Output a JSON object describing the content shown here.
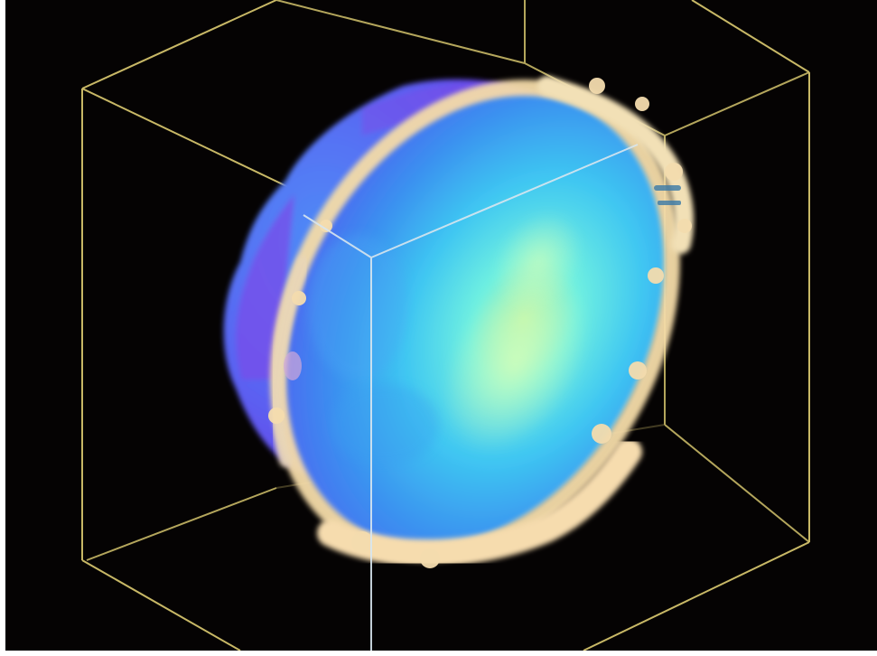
{
  "scene": {
    "background_color": "#050303",
    "box_line_color": "#c8b866",
    "front_edge_color": "#d8e6ee",
    "surface_colors": {
      "deep": "#6a4ef0",
      "mid": "#3aa0f2",
      "light": "#5fe6ea",
      "highlight": "#b8f2a8",
      "rim": "#f4dba8"
    },
    "objects": [
      "bounding-cube",
      "volume-surface",
      "rim-ring"
    ]
  }
}
